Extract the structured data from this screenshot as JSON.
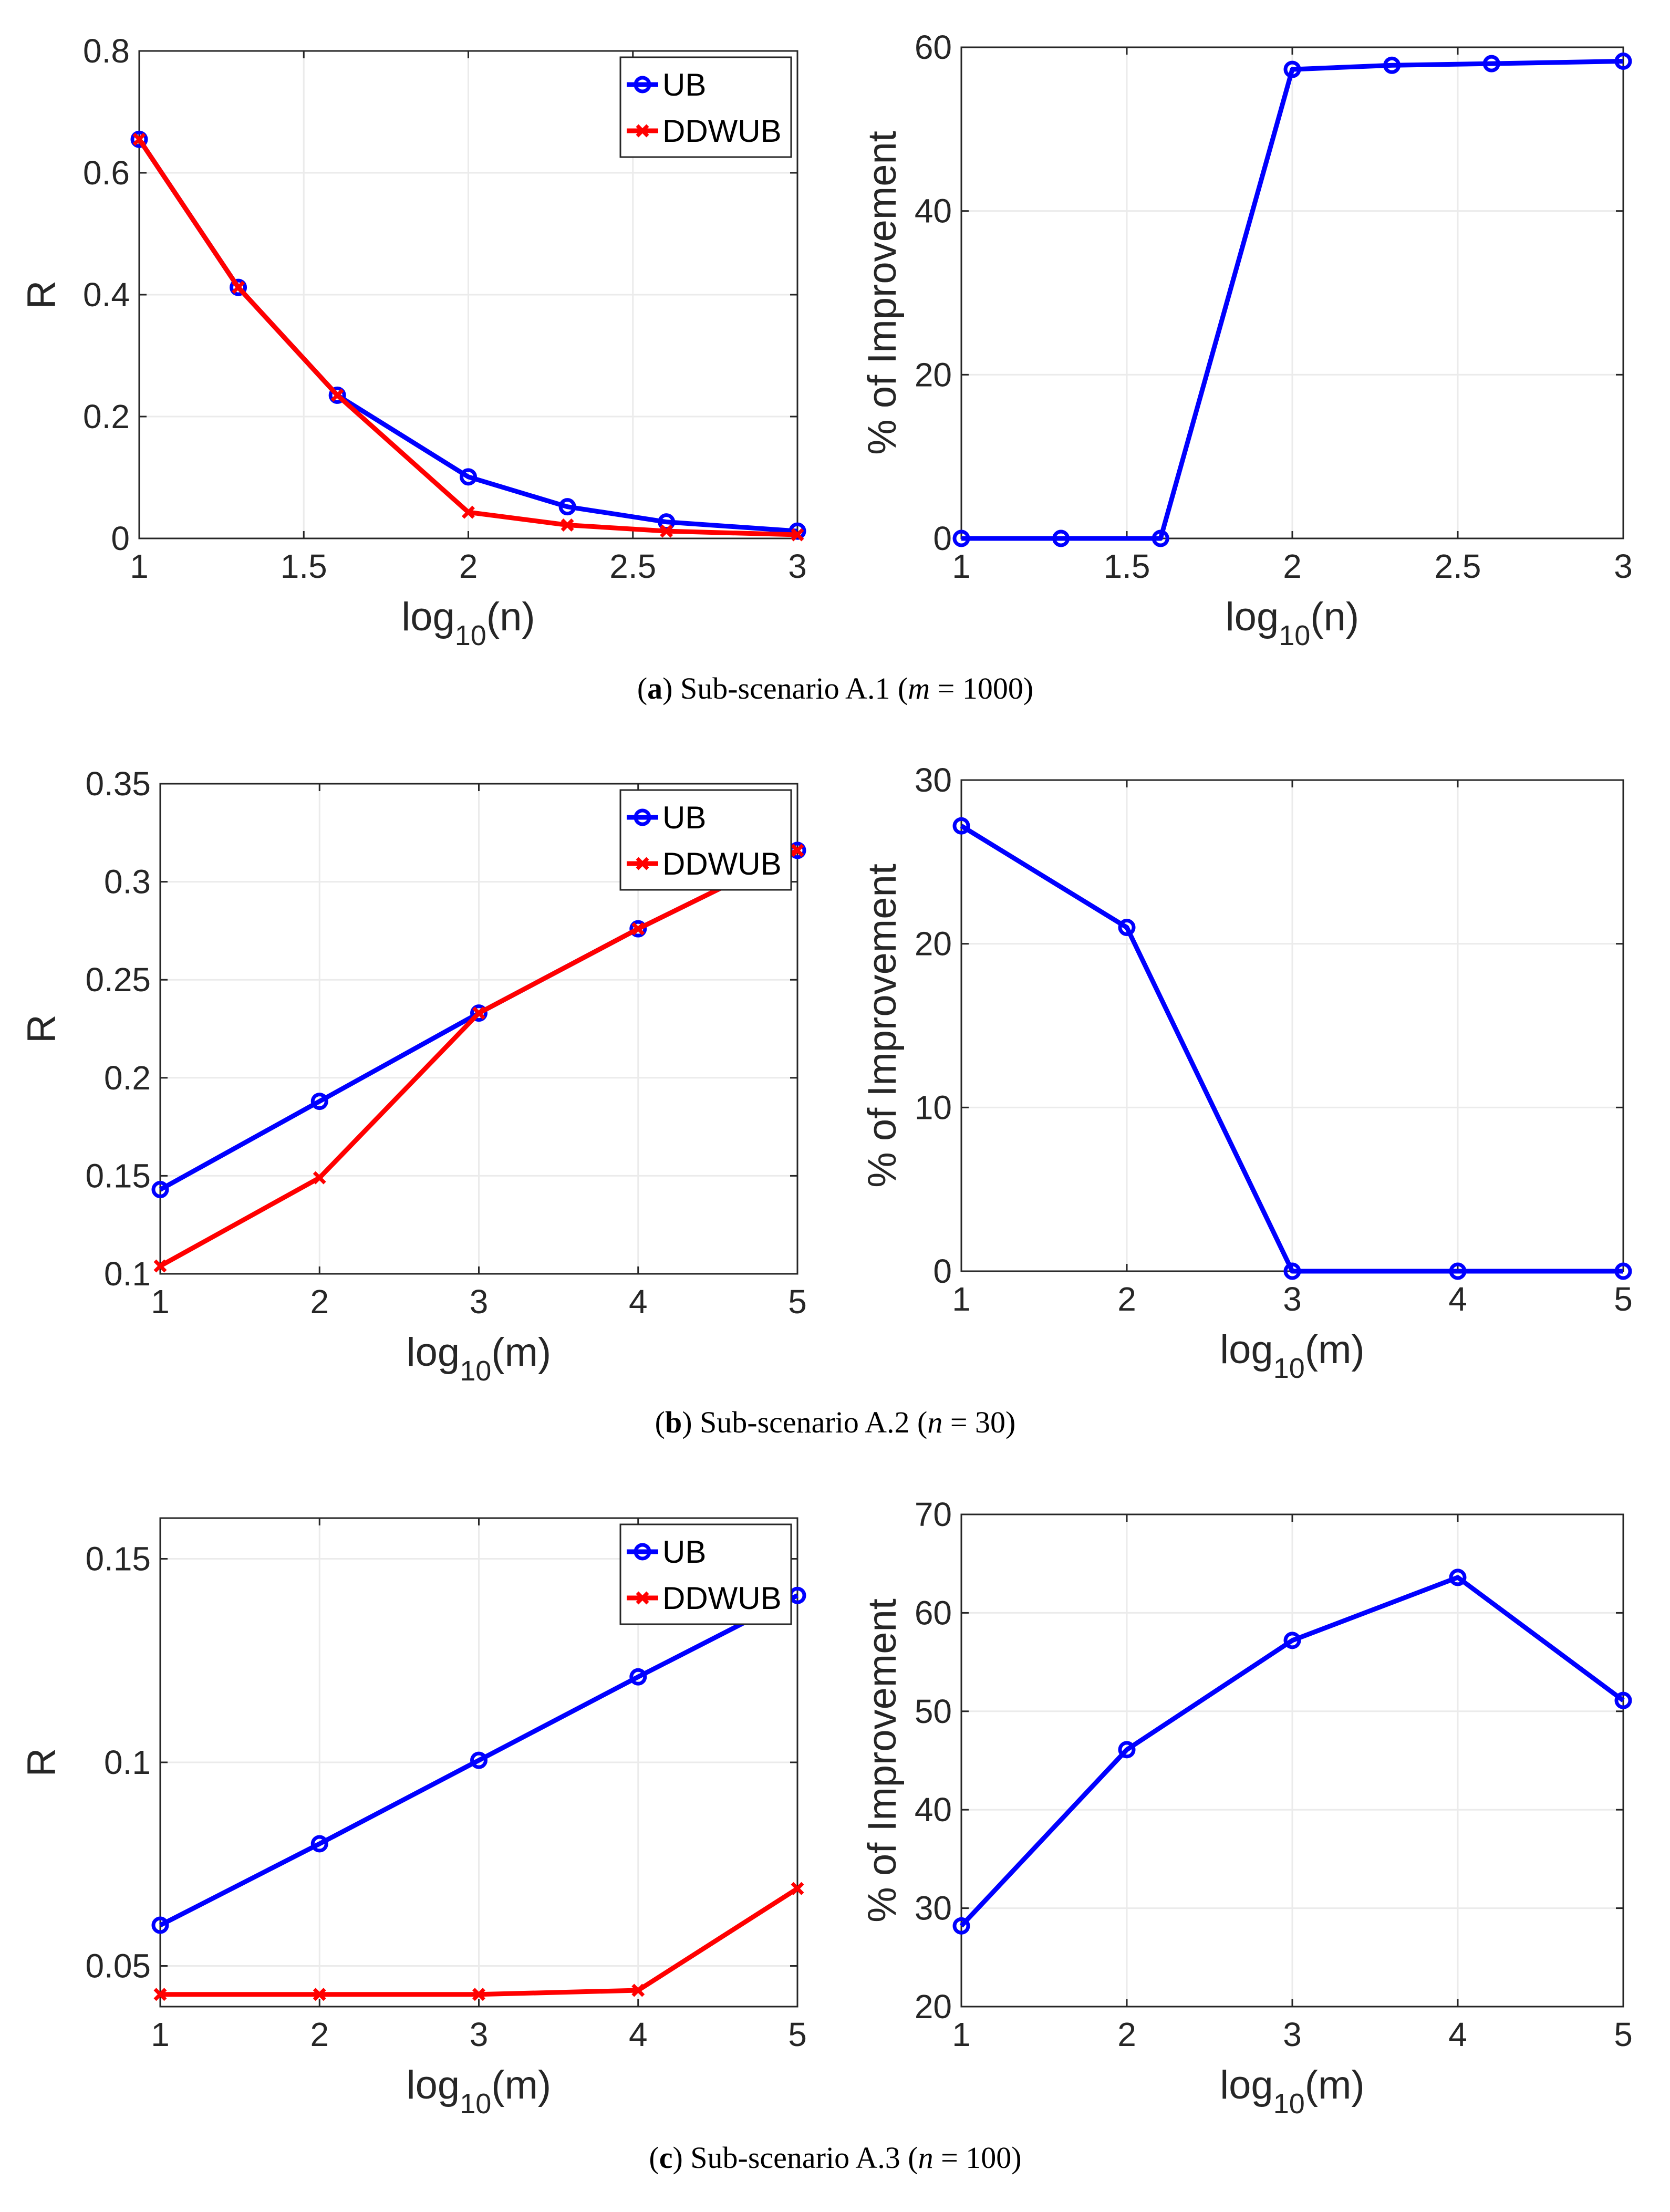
{
  "captions": [
    {
      "letter": "a",
      "text": "Sub-scenario A.1",
      "var": "m",
      "eq": " = 1000"
    },
    {
      "letter": "b",
      "text": "Sub-scenario A.2",
      "var": "n",
      "eq": " = 30"
    },
    {
      "letter": "c",
      "text": "Sub-scenario A.3",
      "var": "n",
      "eq": " = 100"
    }
  ],
  "colors": {
    "ub": "#0000ff",
    "ddwub": "#ff0000",
    "grid": "#ebebeb",
    "axis": "#262626"
  },
  "chart_data": [
    {
      "id": "a-left",
      "type": "line",
      "xlabel_base": "log",
      "xlabel_sub": "10",
      "xlabel_arg": "(n)",
      "ylabel": "R",
      "xlim": [
        1,
        3
      ],
      "ylim": [
        0,
        0.8
      ],
      "xticks": [
        1,
        1.5,
        2,
        2.5,
        3
      ],
      "xtick_labels": [
        "1",
        "1.5",
        "2",
        "2.5",
        "3"
      ],
      "yticks": [
        0,
        0.2,
        0.4,
        0.6,
        0.8
      ],
      "ytick_labels": [
        "0",
        "0.2",
        "0.4",
        "0.6",
        "0.8"
      ],
      "x": [
        1,
        1.301,
        1.602,
        2,
        2.301,
        2.602,
        3
      ],
      "series": [
        {
          "name": "UB",
          "marker": "circle",
          "values": [
            0.655,
            0.412,
            0.235,
            0.101,
            0.052,
            0.027,
            0.012
          ]
        },
        {
          "name": "DDWUB",
          "marker": "x",
          "values": [
            0.655,
            0.412,
            0.235,
            0.043,
            0.022,
            0.012,
            0.006
          ]
        }
      ],
      "legend": "top-right"
    },
    {
      "id": "a-right",
      "type": "line",
      "xlabel_base": "log",
      "xlabel_sub": "10",
      "xlabel_arg": "(n)",
      "ylabel": "% of Improvement",
      "xlim": [
        1,
        3
      ],
      "ylim": [
        0,
        60
      ],
      "xticks": [
        1,
        1.5,
        2,
        2.5,
        3
      ],
      "xtick_labels": [
        "1",
        "1.5",
        "2",
        "2.5",
        "3"
      ],
      "yticks": [
        0,
        20,
        40,
        60
      ],
      "ytick_labels": [
        "0",
        "20",
        "40",
        "60"
      ],
      "x": [
        1,
        1.301,
        1.602,
        2,
        2.301,
        2.602,
        3
      ],
      "series": [
        {
          "name": "Improvement",
          "marker": "circle",
          "values": [
            0,
            0,
            0,
            57.3,
            57.8,
            58.0,
            58.3
          ]
        }
      ]
    },
    {
      "id": "b-left",
      "type": "line",
      "xlabel_base": "log",
      "xlabel_sub": "10",
      "xlabel_arg": "(m)",
      "ylabel": "R",
      "xlim": [
        1,
        5
      ],
      "ylim": [
        0.1,
        0.35
      ],
      "xticks": [
        1,
        2,
        3,
        4,
        5
      ],
      "xtick_labels": [
        "1",
        "2",
        "3",
        "4",
        "5"
      ],
      "yticks": [
        0.1,
        0.15,
        0.2,
        0.25,
        0.3,
        0.35
      ],
      "ytick_labels": [
        "0.1",
        "0.15",
        "0.2",
        "0.25",
        "0.3",
        "0.35"
      ],
      "x": [
        1,
        2,
        3,
        4,
        5
      ],
      "series": [
        {
          "name": "UB",
          "marker": "circle",
          "values": [
            0.143,
            0.188,
            0.233,
            0.276,
            0.316
          ]
        },
        {
          "name": "DDWUB",
          "marker": "x",
          "values": [
            0.104,
            0.149,
            0.233,
            0.276,
            0.316
          ]
        }
      ],
      "legend": "top-right"
    },
    {
      "id": "b-right",
      "type": "line",
      "xlabel_base": "log",
      "xlabel_sub": "10",
      "xlabel_arg": "(m)",
      "ylabel": "% of Improvement",
      "xlim": [
        1,
        5
      ],
      "ylim": [
        0,
        30
      ],
      "xticks": [
        1,
        2,
        3,
        4,
        5
      ],
      "xtick_labels": [
        "1",
        "2",
        "3",
        "4",
        "5"
      ],
      "yticks": [
        0,
        10,
        20,
        30
      ],
      "ytick_labels": [
        "0",
        "10",
        "20",
        "30"
      ],
      "x": [
        1,
        2,
        3,
        4,
        5
      ],
      "series": [
        {
          "name": "Improvement",
          "marker": "circle",
          "values": [
            27.2,
            21.0,
            0,
            0,
            0
          ]
        }
      ]
    },
    {
      "id": "c-left",
      "type": "line",
      "xlabel_base": "log",
      "xlabel_sub": "10",
      "xlabel_arg": "(m)",
      "ylabel": "R",
      "xlim": [
        1,
        5
      ],
      "ylim": [
        0.04,
        0.16
      ],
      "xticks": [
        1,
        2,
        3,
        4,
        5
      ],
      "xtick_labels": [
        "1",
        "2",
        "3",
        "4",
        "5"
      ],
      "yticks": [
        0.05,
        0.1,
        0.15
      ],
      "ytick_labels": [
        "0.05",
        "0.1",
        "0.15"
      ],
      "x": [
        1,
        2,
        3,
        4,
        5
      ],
      "series": [
        {
          "name": "UB",
          "marker": "circle",
          "values": [
            0.06,
            0.08,
            0.1005,
            0.121,
            0.141
          ]
        },
        {
          "name": "DDWUB",
          "marker": "x",
          "values": [
            0.043,
            0.043,
            0.043,
            0.044,
            0.069
          ]
        }
      ],
      "legend": "top-right"
    },
    {
      "id": "c-right",
      "type": "line",
      "xlabel_base": "log",
      "xlabel_sub": "10",
      "xlabel_arg": "(m)",
      "ylabel": "% of Improvement",
      "xlim": [
        1,
        5
      ],
      "ylim": [
        20,
        70
      ],
      "xticks": [
        1,
        2,
        3,
        4,
        5
      ],
      "xtick_labels": [
        "1",
        "2",
        "3",
        "4",
        "5"
      ],
      "yticks": [
        20,
        30,
        40,
        50,
        60,
        70
      ],
      "ytick_labels": [
        "20",
        "30",
        "40",
        "50",
        "60",
        "70"
      ],
      "x": [
        1,
        2,
        3,
        4,
        5
      ],
      "series": [
        {
          "name": "Improvement",
          "marker": "circle",
          "values": [
            28.2,
            46.1,
            57.2,
            63.6,
            51.1
          ]
        }
      ]
    }
  ]
}
